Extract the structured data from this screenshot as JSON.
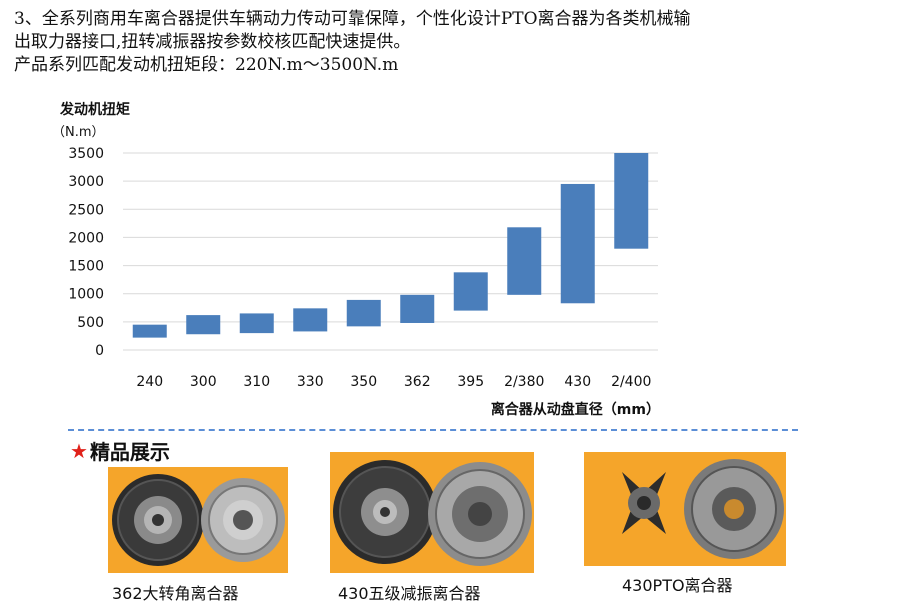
{
  "intro": {
    "line1": "3、全系列商用车离合器提供车辆动力传动可靠保障，个性化设计PTO离合器为各类机械输",
    "line2": "出取力器接口,扭转减振器按参数校核匹配快速提供。",
    "line3": "产品系列匹配发动机扭矩段：220N.m～3500N.m"
  },
  "chart_data": {
    "type": "bar",
    "subtype": "floating-range",
    "ylabel": "发动机扭矩",
    "yunit": "（N.m）",
    "xlabel": "离合器从动盘直径（mm）",
    "ylim": [
      0,
      3500
    ],
    "yticks": [
      0,
      500,
      1000,
      1500,
      2000,
      2500,
      3000,
      3500
    ],
    "grid": true,
    "bar_color": "#4a7ebb",
    "categories": [
      "240",
      "300",
      "310",
      "330",
      "350",
      "362",
      "395",
      "2/380",
      "430",
      "2/400"
    ],
    "low": [
      220,
      280,
      300,
      330,
      420,
      480,
      700,
      980,
      830,
      1800
    ],
    "high": [
      450,
      620,
      650,
      740,
      890,
      980,
      1380,
      2180,
      2950,
      3500
    ]
  },
  "showcase": {
    "star": "★",
    "title": "精品展示",
    "items": [
      {
        "caption": "362大转角离合器"
      },
      {
        "caption": "430五级减振离合器"
      },
      {
        "caption": "430PTO离合器"
      }
    ]
  },
  "colors": {
    "accent_star": "#e0211a",
    "divider": "#5b8ed6",
    "photo_bg": "#f5a52a"
  }
}
